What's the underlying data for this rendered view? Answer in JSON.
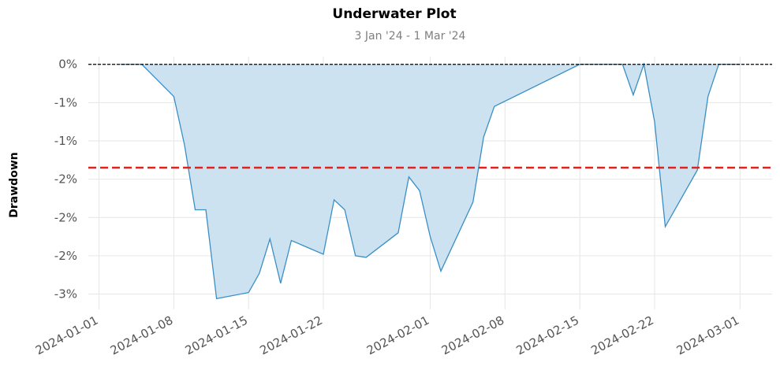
{
  "chart_data": {
    "type": "area",
    "title": "Underwater Plot",
    "subtitle": "3 Jan '24 -  1 Mar '24",
    "xlabel": "",
    "ylabel": "Drawdown",
    "ylim": [
      -3.2,
      0.1
    ],
    "xlim": [
      "2023-12-31",
      "2024-03-04"
    ],
    "grid": true,
    "y_ticks": [
      {
        "value": 0,
        "label": "0%"
      },
      {
        "value": -0.5,
        "label": "-1%"
      },
      {
        "value": -1.0,
        "label": "-1%"
      },
      {
        "value": -1.5,
        "label": "-2%"
      },
      {
        "value": -2.0,
        "label": "-2%"
      },
      {
        "value": -2.5,
        "label": "-2%"
      },
      {
        "value": -3.0,
        "label": "-3%"
      }
    ],
    "x_ticks": [
      "2024-01-01",
      "2024-01-08",
      "2024-01-15",
      "2024-01-22",
      "2024-02-01",
      "2024-02-08",
      "2024-02-15",
      "2024-02-22",
      "2024-03-01"
    ],
    "zero_line": 0,
    "reference_line": -1.35,
    "series": [
      {
        "x": [
          "2024-01-03",
          "2024-01-04",
          "2024-01-05",
          "2024-01-08",
          "2024-01-09",
          "2024-01-10",
          "2024-01-11",
          "2024-01-12",
          "2024-01-15",
          "2024-01-16",
          "2024-01-17",
          "2024-01-18",
          "2024-01-19",
          "2024-01-22",
          "2024-01-23",
          "2024-01-24",
          "2024-01-25",
          "2024-01-26",
          "2024-01-29",
          "2024-01-30",
          "2024-01-31",
          "2024-02-01",
          "2024-02-02",
          "2024-02-05",
          "2024-02-06",
          "2024-02-07",
          "2024-02-15",
          "2024-02-19",
          "2024-02-20",
          "2024-02-21",
          "2024-02-22",
          "2024-02-23",
          "2024-02-26",
          "2024-02-27",
          "2024-02-28",
          "2024-03-01"
        ],
        "values": [
          0,
          0,
          0,
          -0.42,
          -1.05,
          -1.9,
          -1.9,
          -3.06,
          -2.98,
          -2.73,
          -2.28,
          -2.86,
          -2.3,
          -2.48,
          -1.77,
          -1.9,
          -2.5,
          -2.52,
          -2.2,
          -1.47,
          -1.65,
          -2.25,
          -2.7,
          -1.8,
          -0.95,
          -0.55,
          0,
          0,
          -0.4,
          0,
          -0.75,
          -2.12,
          -1.38,
          -0.42,
          0,
          0
        ]
      }
    ],
    "colors": {
      "line": "#3a8fc4",
      "fill": "#cde2f0",
      "reference": "#e3211c",
      "zero": "#000000",
      "grid": "#e6e6e6"
    }
  }
}
